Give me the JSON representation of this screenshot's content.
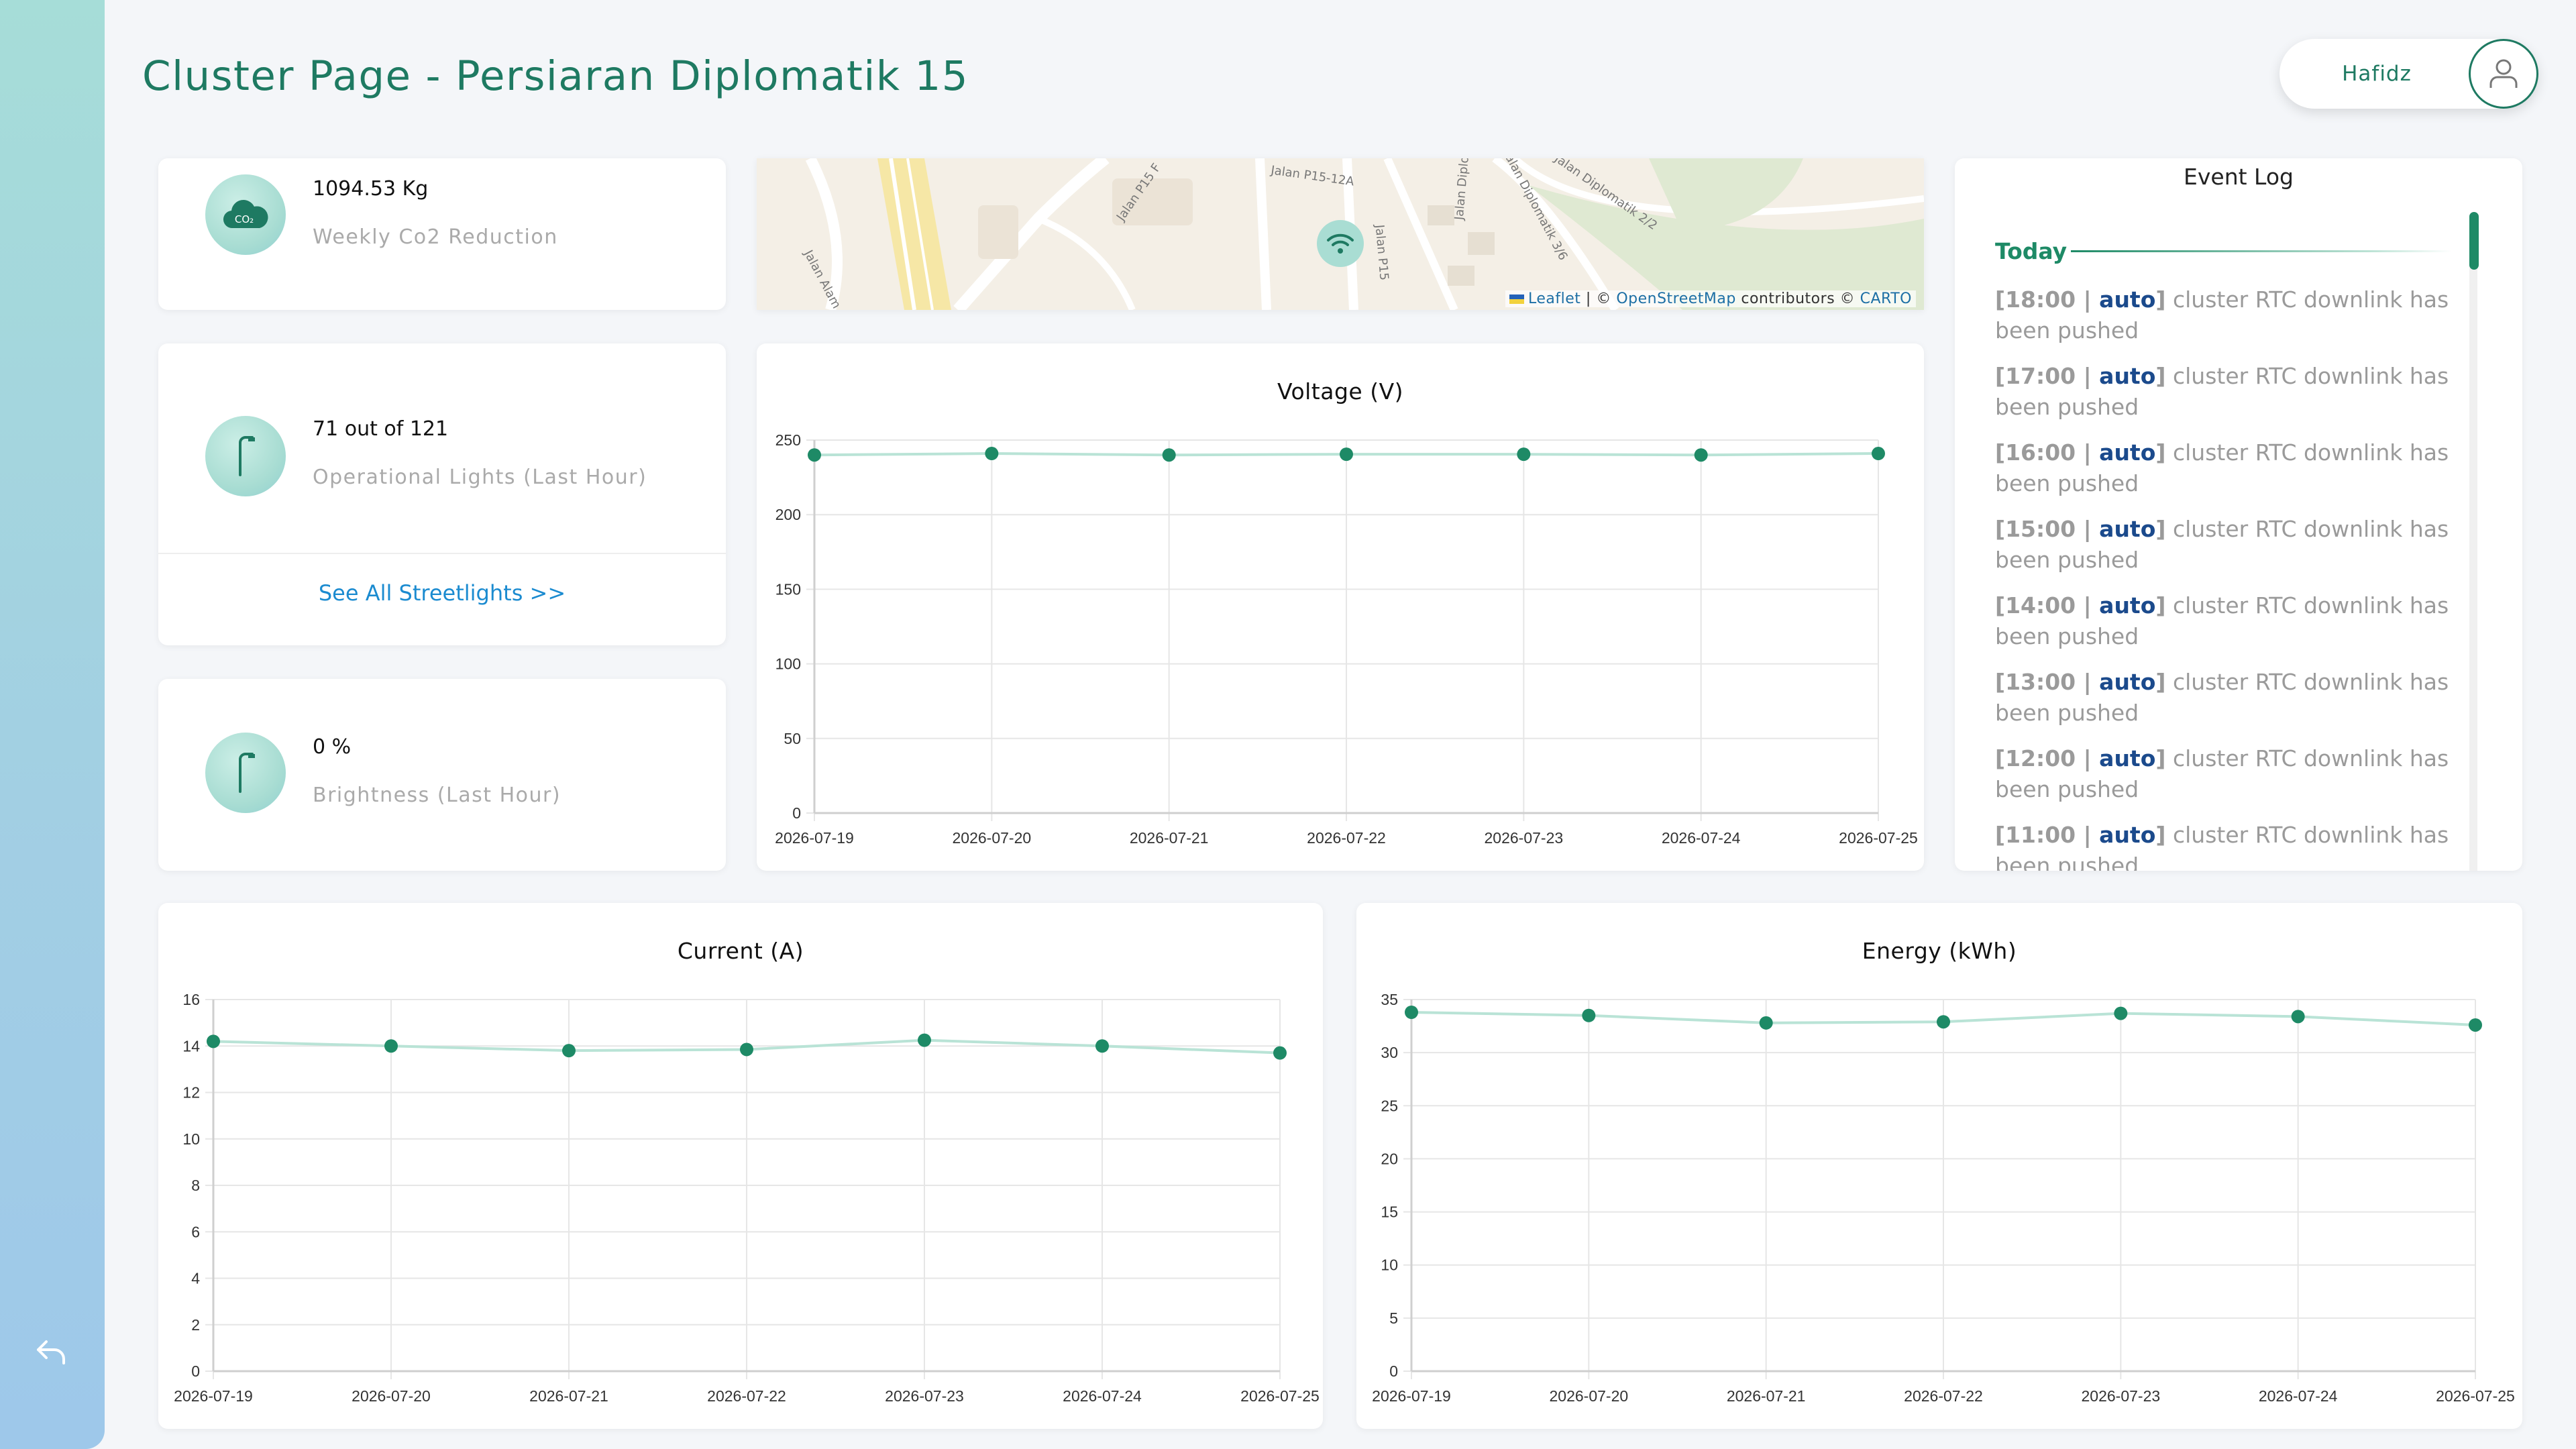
{
  "header": {
    "title": "Cluster Page - Persiaran Diplomatik 15"
  },
  "user": {
    "name": "Hafidz",
    "avatar_icon": "user-icon"
  },
  "sidebar": {
    "back_icon": "back-arrow-icon"
  },
  "stats": {
    "co2": {
      "value": "1094.53 Kg",
      "label": "Weekly Co2 Reduction",
      "icon": "co2-cloud-icon"
    },
    "lights": {
      "value": "71 out of 121",
      "label": "Operational Lights (Last Hour)",
      "icon": "streetlight-icon",
      "link": "See All Streetlights >>"
    },
    "brightness": {
      "value": "0 %",
      "label": "Brightness (Last Hour)",
      "icon": "streetlight-icon"
    }
  },
  "map": {
    "road_labels": [
      "Jalan P15-12A",
      "Jalan P15 F",
      "Jalan Diplor",
      "Jalan P15",
      "Jalan Diplomatik 3/6",
      "Jalan Diplomatik 2/2",
      "Jalan Alam"
    ],
    "attribution": {
      "leaflet": "Leaflet",
      "sep1": " | © ",
      "osm": "OpenStreetMap",
      "mid": " contributors © ",
      "carto": "CARTO"
    },
    "marker_icon": "wifi-icon"
  },
  "event_log": {
    "title": "Event Log",
    "group": "Today",
    "items": [
      {
        "time": "18:00",
        "source": "auto",
        "message": " cluster RTC downlink has been pushed"
      },
      {
        "time": "17:00",
        "source": "auto",
        "message": " cluster RTC downlink has been pushed"
      },
      {
        "time": "16:00",
        "source": "auto",
        "message": " cluster RTC downlink has been pushed"
      },
      {
        "time": "15:00",
        "source": "auto",
        "message": " cluster RTC downlink has been pushed"
      },
      {
        "time": "14:00",
        "source": "auto",
        "message": " cluster RTC downlink has been pushed"
      },
      {
        "time": "13:00",
        "source": "auto",
        "message": " cluster RTC downlink has been pushed"
      },
      {
        "time": "12:00",
        "source": "auto",
        "message": " cluster RTC downlink has been pushed"
      },
      {
        "time": "11:00",
        "source": "auto",
        "message": " cluster RTC downlink has been pushed"
      }
    ]
  },
  "colors": {
    "accent": "#1e8a66",
    "line": "#b9e3d6",
    "grid": "#e6e6e6"
  },
  "chart_data": [
    {
      "id": "voltage",
      "type": "line",
      "title": "Voltage (V)",
      "x": [
        "2026-07-19",
        "2026-07-20",
        "2026-07-21",
        "2026-07-22",
        "2026-07-23",
        "2026-07-24",
        "2026-07-25"
      ],
      "series": [
        {
          "values": [
            240,
            241,
            240,
            240.5,
            240.5,
            240,
            241
          ]
        }
      ],
      "ylim": [
        0,
        250
      ],
      "yticks": [
        0,
        50,
        100,
        150,
        200,
        250
      ],
      "grid": true
    },
    {
      "id": "current",
      "type": "line",
      "title": "Current (A)",
      "x": [
        "2026-07-19",
        "2026-07-20",
        "2026-07-21",
        "2026-07-22",
        "2026-07-23",
        "2026-07-24",
        "2026-07-25"
      ],
      "series": [
        {
          "values": [
            14.2,
            14.0,
            13.8,
            13.85,
            14.25,
            14.0,
            13.7
          ]
        }
      ],
      "ylim": [
        0,
        16
      ],
      "yticks": [
        0,
        2,
        4,
        6,
        8,
        10,
        12,
        14,
        16
      ],
      "grid": true
    },
    {
      "id": "energy",
      "type": "line",
      "title": "Energy (kWh)",
      "x": [
        "2026-07-19",
        "2026-07-20",
        "2026-07-21",
        "2026-07-22",
        "2026-07-23",
        "2026-07-24",
        "2026-07-25"
      ],
      "series": [
        {
          "values": [
            33.8,
            33.5,
            32.8,
            32.9,
            33.7,
            33.4,
            32.6
          ]
        }
      ],
      "ylim": [
        0,
        35
      ],
      "yticks": [
        0,
        5,
        10,
        15,
        20,
        25,
        30,
        35
      ],
      "grid": true
    }
  ]
}
